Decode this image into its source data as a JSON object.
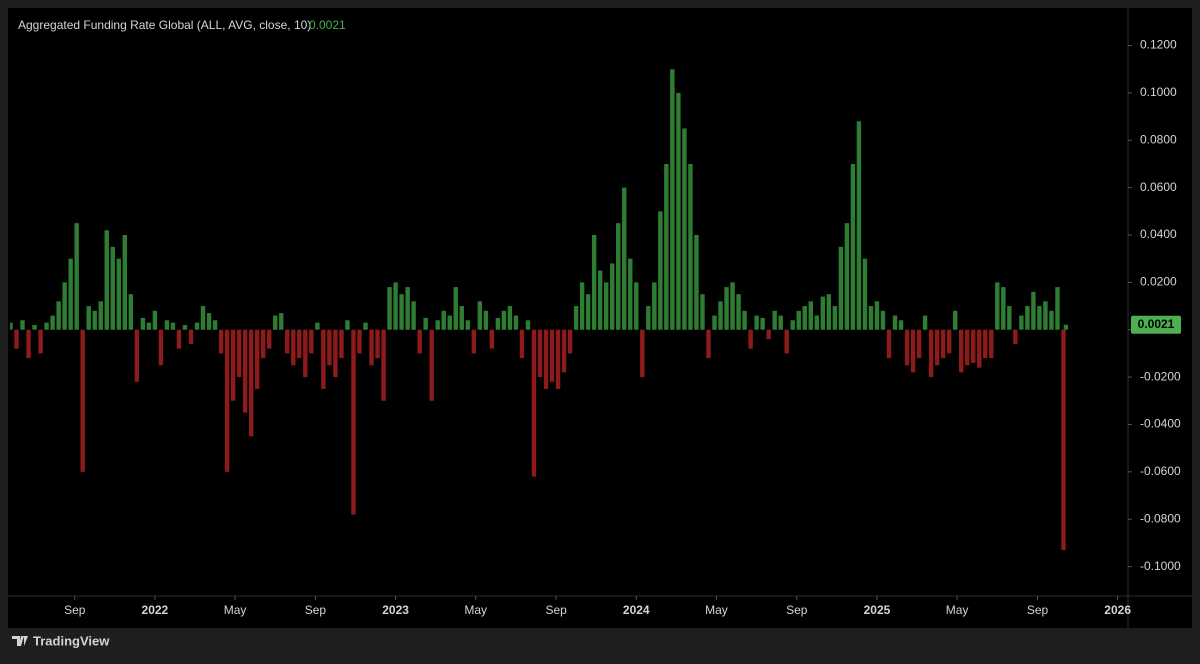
{
  "chart_data": {
    "type": "bar",
    "title": "Aggregated Funding Rate Global (ALL, AVG, close, 10)",
    "positive_color": "#2e7d32",
    "negative_color": "#8e1b1b",
    "x": [
      2021.4,
      2021.425,
      2021.45,
      2021.475,
      2021.5,
      2021.525,
      2021.55,
      2021.575,
      2021.6,
      2021.625,
      2021.65,
      2021.675,
      2021.7,
      2021.725,
      2021.75,
      2021.775,
      2021.8,
      2021.825,
      2021.85,
      2021.875,
      2021.9,
      2021.925,
      2021.95,
      2021.975,
      2022.0,
      2022.025,
      2022.05,
      2022.075,
      2022.1,
      2022.125,
      2022.15,
      2022.175,
      2022.2,
      2022.225,
      2022.25,
      2022.275,
      2022.3,
      2022.325,
      2022.35,
      2022.375,
      2022.4,
      2022.425,
      2022.45,
      2022.475,
      2022.5,
      2022.525,
      2022.55,
      2022.575,
      2022.6,
      2022.625,
      2022.65,
      2022.675,
      2022.7,
      2022.725,
      2022.75,
      2022.775,
      2022.8,
      2022.825,
      2022.85,
      2022.875,
      2022.9,
      2022.925,
      2022.95,
      2022.975,
      2023.0,
      2023.025,
      2023.05,
      2023.075,
      2023.1,
      2023.125,
      2023.15,
      2023.175,
      2023.2,
      2023.225,
      2023.25,
      2023.275,
      2023.3,
      2023.325,
      2023.35,
      2023.375,
      2023.4,
      2023.425,
      2023.45,
      2023.475,
      2023.5,
      2023.525,
      2023.55,
      2023.575,
      2023.6,
      2023.625,
      2023.65,
      2023.675,
      2023.7,
      2023.725,
      2023.75,
      2023.775,
      2023.8,
      2023.825,
      2023.85,
      2023.875,
      2023.9,
      2023.925,
      2023.95,
      2023.975,
      2024.0,
      2024.025,
      2024.05,
      2024.075,
      2024.1,
      2024.125,
      2024.15,
      2024.175,
      2024.2,
      2024.225,
      2024.25,
      2024.275,
      2024.3,
      2024.325,
      2024.35,
      2024.375,
      2024.4,
      2024.425,
      2024.45,
      2024.475,
      2024.5,
      2024.525,
      2024.55,
      2024.575,
      2024.6,
      2024.625,
      2024.65,
      2024.675,
      2024.7,
      2024.725,
      2024.75,
      2024.775,
      2024.8,
      2024.825,
      2024.85,
      2024.875,
      2024.9,
      2024.925,
      2024.95,
      2024.975,
      2025.0,
      2025.025,
      2025.05,
      2025.075,
      2025.1,
      2025.125,
      2025.15,
      2025.175,
      2025.2,
      2025.225,
      2025.25,
      2025.275,
      2025.3,
      2025.325,
      2025.35,
      2025.375,
      2025.4,
      2025.425,
      2025.45,
      2025.475,
      2025.5,
      2025.525,
      2025.55,
      2025.575,
      2025.6,
      2025.625,
      2025.65,
      2025.675,
      2025.7,
      2025.725,
      2025.75,
      2025.775,
      2025.785
    ],
    "values": [
      0.003,
      -0.008,
      0.004,
      -0.012,
      0.002,
      -0.01,
      0.003,
      0.006,
      0.012,
      0.02,
      0.03,
      0.045,
      -0.06,
      0.01,
      0.008,
      0.012,
      0.042,
      0.035,
      0.03,
      0.04,
      0.015,
      -0.022,
      0.005,
      0.003,
      0.008,
      -0.015,
      0.004,
      0.003,
      -0.008,
      0.002,
      -0.006,
      0.003,
      0.01,
      0.007,
      0.004,
      -0.01,
      -0.06,
      -0.03,
      -0.02,
      -0.035,
      -0.045,
      -0.025,
      -0.012,
      -0.008,
      0.006,
      0.007,
      -0.01,
      -0.015,
      -0.012,
      -0.02,
      -0.01,
      0.003,
      -0.025,
      -0.015,
      -0.02,
      -0.012,
      0.004,
      -0.078,
      -0.01,
      0.003,
      -0.015,
      -0.012,
      -0.03,
      0.018,
      0.02,
      0.015,
      0.018,
      0.012,
      -0.01,
      0.005,
      -0.03,
      0.004,
      0.008,
      0.006,
      0.018,
      0.01,
      0.004,
      -0.01,
      0.012,
      0.008,
      -0.008,
      0.005,
      0.008,
      0.01,
      0.006,
      -0.012,
      0.004,
      -0.062,
      -0.02,
      -0.025,
      -0.022,
      -0.025,
      -0.018,
      -0.01,
      0.01,
      0.02,
      0.015,
      0.04,
      0.025,
      0.02,
      0.028,
      0.045,
      0.06,
      0.03,
      0.02,
      -0.02,
      0.01,
      0.02,
      0.05,
      0.07,
      0.11,
      0.1,
      0.085,
      0.07,
      0.04,
      0.015,
      -0.012,
      0.006,
      0.012,
      0.018,
      0.02,
      0.015,
      0.008,
      -0.008,
      0.006,
      0.005,
      -0.004,
      0.008,
      0.006,
      -0.01,
      0.004,
      0.008,
      0.01,
      0.012,
      0.006,
      0.014,
      0.015,
      0.01,
      0.035,
      0.045,
      0.07,
      0.088,
      0.03,
      0.01,
      0.012,
      0.008,
      -0.012,
      0.006,
      0.004,
      -0.015,
      -0.018,
      -0.012,
      0.006,
      -0.02,
      -0.015,
      -0.012,
      -0.01,
      0.008,
      -0.018,
      -0.015,
      -0.014,
      -0.016,
      -0.012,
      -0.012,
      0.02,
      0.018,
      0.01,
      -0.006,
      0.006,
      0.01,
      0.016,
      0.01,
      0.012,
      0.008,
      0.018,
      -0.093,
      0.0021
    ],
    "xlim": [
      2021.398,
      2026.043
    ],
    "xticks": [
      {
        "value": 2021.667,
        "label": "Sep"
      },
      2022,
      {
        "value": 2022.333,
        "label": "May"
      },
      {
        "value": 2022.667,
        "label": "Sep"
      },
      2023,
      {
        "value": 2023.333,
        "label": "May"
      },
      {
        "value": 2023.667,
        "label": "Sep"
      },
      2024,
      {
        "value": 2024.333,
        "label": "May"
      },
      {
        "value": 2024.667,
        "label": "Sep"
      },
      2025,
      {
        "value": 2025.333,
        "label": "May"
      },
      {
        "value": 2025.667,
        "label": "Sep"
      },
      2026
    ],
    "ylim": [
      -0.112,
      0.135
    ],
    "yticks": [
      {
        "value": 0.12,
        "label": "0.1200"
      },
      {
        "value": 0.1,
        "label": "0.1000"
      },
      {
        "value": 0.08,
        "label": "0.0800"
      },
      {
        "value": 0.06,
        "label": "0.0600"
      },
      {
        "value": 0.04,
        "label": "0.0400"
      },
      {
        "value": 0.02,
        "label": "0.0200"
      },
      {
        "value": 0,
        "label": "0.0000"
      },
      {
        "value": -0.02,
        "label": "-0.0200"
      },
      {
        "value": -0.04,
        "label": "-0.0400"
      },
      {
        "value": -0.06,
        "label": "-0.0600"
      },
      {
        "value": -0.08,
        "label": "-0.0800"
      },
      {
        "value": -0.1,
        "label": "-0.1000"
      }
    ],
    "grid": false
  },
  "footer": {
    "brand": "TradingView"
  }
}
